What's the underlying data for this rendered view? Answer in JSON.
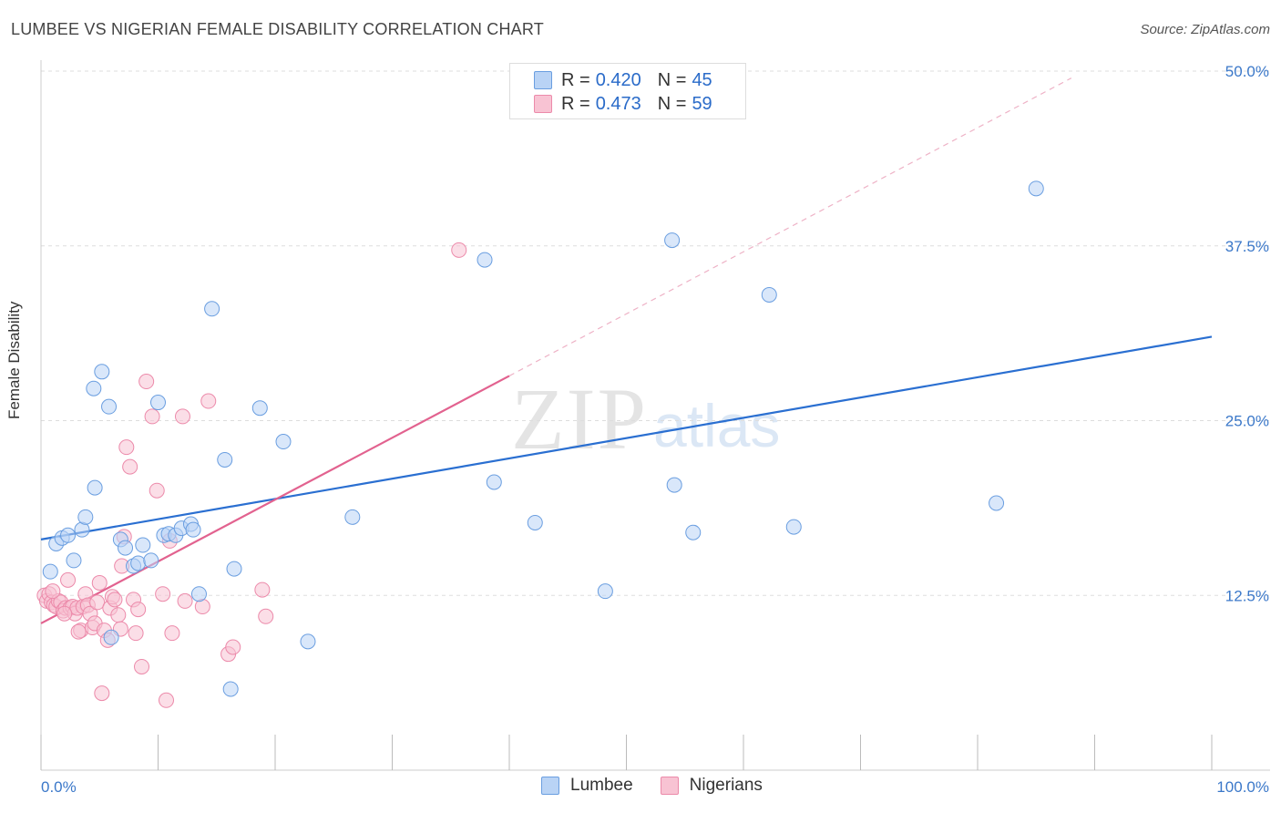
{
  "title": "LUMBEE VS NIGERIAN FEMALE DISABILITY CORRELATION CHART",
  "source": "Source: ZipAtlas.com",
  "watermark": {
    "zip": "ZIP",
    "atlas": "atlas"
  },
  "colors": {
    "lumbee_fill": "#b9d3f5",
    "lumbee_stroke": "#6a9ee0",
    "lumbee_line": "#2a6fd1",
    "nigerian_fill": "#f8c3d3",
    "nigerian_stroke": "#ec8aaa",
    "nigerian_line": "#e2628f",
    "axis_label": "#3b78c9",
    "grid": "#dddddd"
  },
  "legend": {
    "rows": [
      {
        "r_label": "R =",
        "r_value": "0.420",
        "n_label": "N =",
        "n_value": "45"
      },
      {
        "r_label": "R =",
        "r_value": "0.473",
        "n_label": "N =",
        "n_value": "59"
      }
    ]
  },
  "bottom_legend": [
    "Lumbee",
    "Nigerians"
  ],
  "chart_data": {
    "type": "scatter",
    "title": "LUMBEE VS NIGERIAN FEMALE DISABILITY CORRELATION CHART",
    "xlabel": "",
    "ylabel": "Female Disability",
    "xlim": [
      0,
      100
    ],
    "ylim": [
      0,
      50
    ],
    "x_tick_labels": [
      "0.0%",
      "100.0%"
    ],
    "y_ticks": [
      12.5,
      25.0,
      37.5,
      50.0
    ],
    "y_tick_labels": [
      "12.5%",
      "25.0%",
      "37.5%",
      "50.0%"
    ],
    "grid": "horizontal dashed",
    "series": [
      {
        "name": "Lumbee",
        "r": 0.42,
        "n": 45,
        "trend": {
          "x0": 0,
          "y0": 16.5,
          "x1": 100,
          "y1": 31.0
        },
        "points": [
          [
            0.8,
            14.2
          ],
          [
            1.3,
            16.2
          ],
          [
            1.8,
            16.6
          ],
          [
            2.3,
            16.8
          ],
          [
            2.8,
            15.0
          ],
          [
            3.5,
            17.2
          ],
          [
            3.8,
            18.1
          ],
          [
            4.5,
            27.3
          ],
          [
            4.6,
            20.2
          ],
          [
            5.2,
            28.5
          ],
          [
            5.8,
            26.0
          ],
          [
            6.8,
            16.5
          ],
          [
            7.2,
            15.9
          ],
          [
            7.9,
            14.6
          ],
          [
            8.3,
            14.8
          ],
          [
            8.7,
            16.1
          ],
          [
            9.4,
            15.0
          ],
          [
            10.0,
            26.3
          ],
          [
            10.5,
            16.8
          ],
          [
            10.9,
            16.9
          ],
          [
            11.5,
            16.8
          ],
          [
            12.0,
            17.3
          ],
          [
            12.8,
            17.6
          ],
          [
            13.5,
            12.6
          ],
          [
            14.6,
            33.0
          ],
          [
            15.7,
            22.2
          ],
          [
            16.2,
            5.8
          ],
          [
            16.5,
            14.4
          ],
          [
            18.7,
            25.9
          ],
          [
            20.7,
            23.5
          ],
          [
            22.8,
            9.2
          ],
          [
            26.6,
            18.1
          ],
          [
            37.9,
            36.5
          ],
          [
            38.7,
            20.6
          ],
          [
            42.2,
            17.7
          ],
          [
            48.2,
            12.8
          ],
          [
            53.9,
            37.9
          ],
          [
            54.1,
            20.4
          ],
          [
            55.7,
            17.0
          ],
          [
            62.2,
            34.0
          ],
          [
            64.3,
            17.4
          ],
          [
            81.6,
            19.1
          ],
          [
            85.0,
            41.6
          ],
          [
            6.0,
            9.5
          ],
          [
            13.0,
            17.2
          ]
        ]
      },
      {
        "name": "Nigerians",
        "r": 0.473,
        "n": 59,
        "trend": {
          "x0": 0,
          "y0": 10.5,
          "x1": 40,
          "y1": 28.2,
          "dash_x1": 88,
          "dash_y1": 49.5
        },
        "points": [
          [
            0.3,
            12.5
          ],
          [
            0.5,
            12.1
          ],
          [
            0.7,
            12.6
          ],
          [
            0.9,
            12.0
          ],
          [
            1.1,
            11.8
          ],
          [
            1.3,
            11.7
          ],
          [
            1.5,
            12.1
          ],
          [
            1.7,
            12.0
          ],
          [
            1.9,
            11.4
          ],
          [
            2.1,
            11.6
          ],
          [
            2.3,
            13.6
          ],
          [
            2.5,
            11.6
          ],
          [
            2.7,
            11.7
          ],
          [
            2.9,
            11.2
          ],
          [
            3.1,
            11.6
          ],
          [
            3.4,
            10.0
          ],
          [
            3.6,
            11.7
          ],
          [
            3.8,
            12.6
          ],
          [
            4.0,
            11.8
          ],
          [
            4.2,
            11.2
          ],
          [
            4.4,
            10.2
          ],
          [
            4.6,
            10.5
          ],
          [
            4.8,
            12.0
          ],
          [
            5.0,
            13.4
          ],
          [
            5.2,
            5.5
          ],
          [
            5.4,
            10.0
          ],
          [
            5.7,
            9.3
          ],
          [
            5.9,
            11.6
          ],
          [
            6.1,
            12.4
          ],
          [
            6.3,
            12.2
          ],
          [
            6.6,
            11.1
          ],
          [
            6.8,
            10.1
          ],
          [
            6.9,
            14.6
          ],
          [
            7.1,
            16.7
          ],
          [
            7.3,
            23.1
          ],
          [
            7.6,
            21.7
          ],
          [
            7.9,
            12.2
          ],
          [
            8.1,
            9.8
          ],
          [
            8.3,
            11.5
          ],
          [
            8.6,
            7.4
          ],
          [
            9.0,
            27.8
          ],
          [
            9.5,
            25.3
          ],
          [
            9.9,
            20.0
          ],
          [
            10.4,
            12.6
          ],
          [
            10.7,
            5.0
          ],
          [
            11.0,
            16.4
          ],
          [
            11.2,
            9.8
          ],
          [
            12.1,
            25.3
          ],
          [
            12.3,
            12.1
          ],
          [
            13.8,
            11.7
          ],
          [
            14.3,
            26.4
          ],
          [
            16.0,
            8.3
          ],
          [
            16.4,
            8.8
          ],
          [
            18.9,
            12.9
          ],
          [
            19.2,
            11.0
          ],
          [
            35.7,
            37.2
          ],
          [
            1.0,
            12.8
          ],
          [
            2.0,
            11.2
          ],
          [
            3.2,
            9.9
          ]
        ]
      }
    ]
  }
}
